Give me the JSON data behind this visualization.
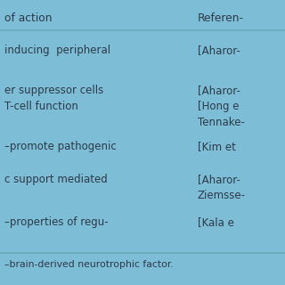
{
  "background_color": "#7dbdd6",
  "header_col1": "of action",
  "header_col2": "Referen-",
  "rows": [
    {
      "col1": "inducing  peripheral",
      "col2": "[Aharor-"
    },
    {
      "col1": "er suppressor cells\nT-cell function",
      "col2": "[Aharor-\n[Hong e\nTennake-"
    },
    {
      "col1": "–promote pathogenic",
      "col2": "[Kim et"
    },
    {
      "col1": "c support mediated",
      "col2": "[Aharor-\nZiemsse-"
    },
    {
      "col1": "–properties of regu-",
      "col2": "[Kala e"
    }
  ],
  "footer": "–brain-derived neurotrophic factor.",
  "text_color": "#2d3a4a",
  "line_color": "#6aaabf",
  "font_size": 8.5,
  "header_font_size": 8.8,
  "footer_font_size": 7.8
}
